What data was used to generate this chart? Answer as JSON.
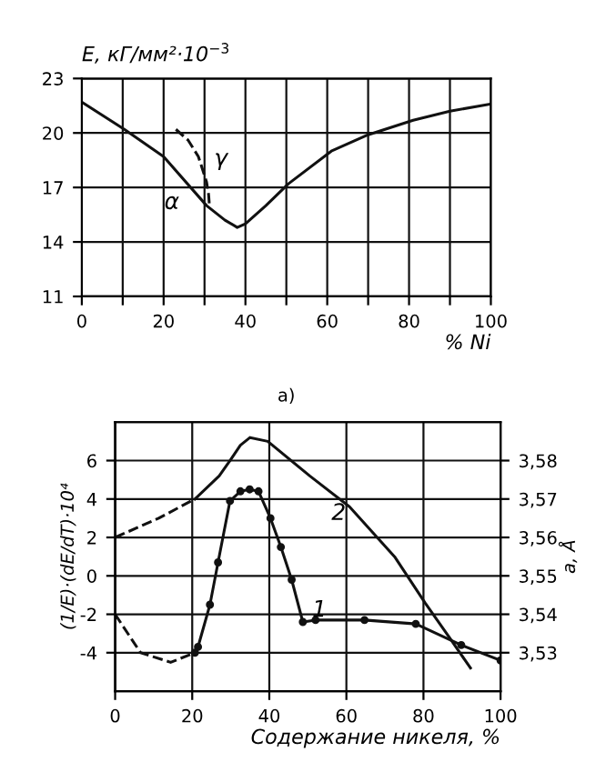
{
  "chart_data": [
    {
      "type": "line",
      "ylabel": "E, кГ/мм²·10$^{−3}$",
      "xlabel": "% Ni",
      "xlim": [
        0,
        100
      ],
      "ylim": [
        11,
        23
      ],
      "xticks": [
        0,
        {
          "value": 10,
          "label": null
        },
        20,
        {
          "value": 30,
          "label": null
        },
        40,
        {
          "value": 50,
          "label": null
        },
        60,
        {
          "value": 70,
          "label": null
        },
        80,
        {
          "value": 90,
          "label": null
        },
        100
      ],
      "yticks": [
        11,
        14,
        17,
        20,
        23
      ],
      "grid": true,
      "series": [
        {
          "color": "#111111",
          "line_style": "solid",
          "x": [
            0,
            10.4,
            20,
            30.5,
            35,
            38,
            40,
            45,
            50.5,
            61,
            70,
            81,
            90,
            100
          ],
          "values": [
            21.7,
            20.2,
            18.7,
            16,
            15.2,
            14.8,
            15,
            16,
            17.2,
            19,
            19.9,
            20.7,
            21.2,
            21.6
          ]
        },
        {
          "color": "#111111",
          "line_style": "dashed",
          "x": [
            23,
            26,
            28.5,
            30.5,
            31,
            31.2
          ],
          "values": [
            20.2,
            19.6,
            18.7,
            17.3,
            16.6,
            16
          ]
        }
      ],
      "annotations": [
        "α",
        "γ",
        "а)"
      ]
    },
    {
      "type": "line",
      "xlabel": "Содержание никеля, %",
      "ylabel": "(1/E)·(dE/dT)·10⁴",
      "y2label": "a, Å",
      "xlim": [
        0,
        100
      ],
      "ylim": [
        -6,
        8
      ],
      "xticks": [
        0,
        20,
        40,
        60,
        80,
        100
      ],
      "yticks": [
        -4,
        -2,
        0,
        2,
        4,
        6
      ],
      "y2lim": [
        3.52,
        3.59
      ],
      "y2ticks": [
        {
          "value": 3.53,
          "label": "3,53"
        },
        {
          "value": 3.54,
          "label": "3,54"
        },
        {
          "value": 3.55,
          "label": "3,55"
        },
        {
          "value": 3.56,
          "label": "3,56"
        },
        {
          "value": 3.57,
          "label": "3,57"
        },
        {
          "value": 3.58,
          "label": "3,58"
        }
      ],
      "grid": true,
      "series": [
        {
          "color": "#111111",
          "line_style": "dashed",
          "x": [
            0,
            6.6,
            14.4,
            20.7
          ],
          "values": [
            -2,
            -4,
            -4.5,
            -4
          ]
        },
        {
          "color": "#111111",
          "line_style": "solid",
          "marker": "circle",
          "x": [
            20.7,
            21.5,
            24.6,
            26.7,
            29.8,
            32.5,
            34.9,
            37.2,
            40.3,
            43,
            45.8,
            48.7,
            52,
            64.7,
            78,
            89.8,
            100
          ],
          "values": [
            -4,
            -3.7,
            -1.5,
            0.7,
            3.9,
            4.4,
            4.5,
            4.4,
            3.0,
            1.5,
            -0.2,
            -2.4,
            -2.3,
            -2.3,
            -2.5,
            -3.6,
            -4.4
          ]
        },
        {
          "color": "#111111",
          "line_style": "dashed",
          "axis": "y2",
          "x": [
            0,
            11.3,
            20.7
          ],
          "values": [
            3.56,
            3.565,
            3.57
          ]
        },
        {
          "color": "#111111",
          "line_style": "solid",
          "axis": "y2",
          "x": [
            20.7,
            27,
            29.8,
            32.5,
            35,
            39.6,
            50.5,
            60.8,
            72.5,
            80.4,
            86.7,
            92.2
          ],
          "values": [
            3.57,
            3.576,
            3.58,
            3.584,
            3.586,
            3.585,
            3.576,
            3.568,
            3.555,
            3.543,
            3.534,
            3.526
          ]
        }
      ],
      "annotations": [
        "1",
        "2"
      ]
    }
  ]
}
